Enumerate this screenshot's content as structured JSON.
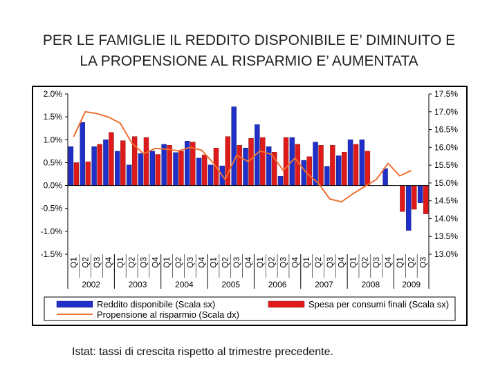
{
  "title": {
    "line1": "PER LE FAMIGLIE IL REDDITO DISPONIBILE E’ DIMINUITO E",
    "line2": "LA PROPENSIONE AL RISPARMIO E’ AUMENTATA"
  },
  "source_note": "Istat: tassi di crescita rispetto al trimestre precedente.",
  "colors": {
    "reddito": "#1f2fc8",
    "spesa": "#e01a1a",
    "propensione": "#f07030"
  },
  "chart_data": {
    "type": "bar",
    "quarters": [
      "Q1",
      "Q2",
      "Q3",
      "Q4",
      "Q1",
      "Q2",
      "Q3",
      "Q4",
      "Q1",
      "Q2",
      "Q3",
      "Q4",
      "Q1",
      "Q2",
      "Q3",
      "Q4",
      "Q1",
      "Q2",
      "Q3",
      "Q4",
      "Q1",
      "Q2",
      "Q3",
      "Q4",
      "Q1",
      "Q2",
      "Q3",
      "Q4",
      "Q1",
      "Q2",
      "Q3"
    ],
    "years": [
      {
        "label": "2002",
        "quarters": 4
      },
      {
        "label": "2003",
        "quarters": 4
      },
      {
        "label": "2004",
        "quarters": 4
      },
      {
        "label": "2005",
        "quarters": 4
      },
      {
        "label": "2006",
        "quarters": 4
      },
      {
        "label": "2007",
        "quarters": 4
      },
      {
        "label": "2008",
        "quarters": 4
      },
      {
        "label": "2009",
        "quarters": 3
      }
    ],
    "left_axis": {
      "min": -1.5,
      "max": 2.0,
      "ticks": [
        "2.0%",
        "1.5%",
        "1.0%",
        "0.5%",
        "0.0%",
        "-0.5%",
        "-1.0%",
        "-1.5%"
      ]
    },
    "right_axis": {
      "min": 13.0,
      "max": 17.5,
      "ticks": [
        "17.5%",
        "17.0%",
        "16.5%",
        "16.0%",
        "15.5%",
        "15.0%",
        "14.5%",
        "14.0%",
        "13.5%",
        "13.0%"
      ]
    },
    "series": [
      {
        "name": "Reddito disponibile (Scala sx)",
        "kind": "bar",
        "axis": "left",
        "values": [
          0.85,
          1.38,
          0.85,
          1.0,
          0.75,
          0.45,
          0.7,
          0.75,
          0.9,
          0.72,
          0.97,
          0.6,
          0.45,
          0.43,
          1.72,
          0.82,
          1.33,
          0.85,
          0.2,
          1.05,
          0.55,
          0.95,
          0.42,
          0.65,
          1.0,
          1.0,
          0.0,
          0.37,
          0.0,
          -0.98,
          -0.38
        ]
      },
      {
        "name": "Spesa per consumi finali (Scala sx)",
        "kind": "bar",
        "axis": "left",
        "values": [
          0.5,
          0.52,
          0.9,
          1.16,
          0.98,
          1.07,
          1.05,
          0.68,
          0.88,
          0.75,
          0.95,
          0.67,
          0.82,
          1.07,
          0.88,
          1.03,
          1.05,
          0.73,
          1.05,
          0.9,
          0.63,
          0.88,
          0.88,
          0.73,
          0.9,
          0.75,
          0.0,
          0.0,
          -0.57,
          -0.52,
          -0.62
        ]
      },
      {
        "name": "Propensione al risparmio (Scala dx)",
        "kind": "line",
        "axis": "right",
        "values": [
          16.3,
          17.0,
          16.95,
          16.85,
          16.68,
          16.12,
          15.82,
          15.97,
          15.95,
          15.9,
          16.0,
          15.92,
          15.56,
          15.1,
          15.78,
          15.6,
          15.9,
          15.8,
          15.35,
          15.7,
          15.28,
          15.0,
          14.55,
          14.47,
          14.7,
          14.9,
          15.1,
          15.55,
          15.2,
          15.35,
          null
        ]
      }
    ]
  }
}
